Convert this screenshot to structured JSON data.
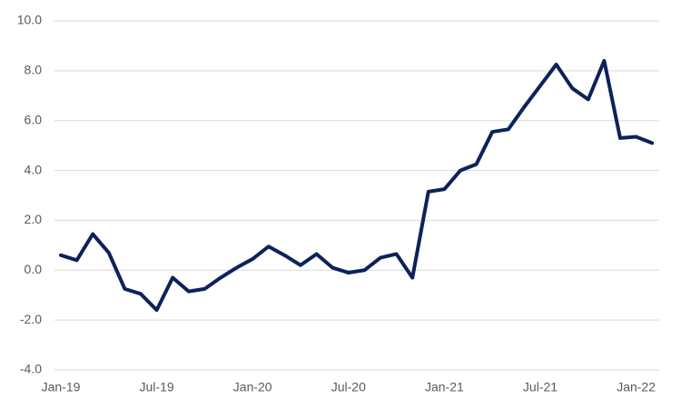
{
  "chart_data": {
    "type": "line",
    "categories": [
      "Jan-19",
      null,
      null,
      null,
      null,
      null,
      "Jul-19",
      null,
      null,
      null,
      null,
      null,
      "Jan-20",
      null,
      null,
      null,
      null,
      null,
      "Jul-20",
      null,
      null,
      null,
      null,
      null,
      "Jan-21",
      null,
      null,
      null,
      null,
      null,
      "Jul-21",
      null,
      null,
      null,
      null,
      null,
      "Jan-22",
      null
    ],
    "series": [
      {
        "color": "#0c2259",
        "values": [
          0.6,
          0.4,
          1.45,
          0.7,
          -0.75,
          -0.95,
          -1.6,
          -0.3,
          -0.85,
          -0.75,
          -0.3,
          0.1,
          0.45,
          0.95,
          0.6,
          0.2,
          0.65,
          0.1,
          -0.1,
          0.0,
          0.5,
          0.65,
          -0.3,
          3.15,
          3.25,
          4.0,
          4.25,
          5.55,
          5.65,
          6.55,
          7.4,
          8.25,
          7.3,
          6.85,
          8.4,
          5.3,
          5.35,
          5.1
        ]
      }
    ],
    "ylim": [
      -4,
      10
    ],
    "yticks": [
      {
        "value": -4,
        "label": "-4.0"
      },
      {
        "value": -2,
        "label": "-2.0"
      },
      {
        "value": 0,
        "label": "0.0"
      },
      {
        "value": 2,
        "label": "2.0"
      },
      {
        "value": 4,
        "label": "4.0"
      },
      {
        "value": 6,
        "label": "6.0"
      },
      {
        "value": 8,
        "label": "8.0"
      },
      {
        "value": 10,
        "label": "10.0"
      }
    ],
    "grid": true
  }
}
